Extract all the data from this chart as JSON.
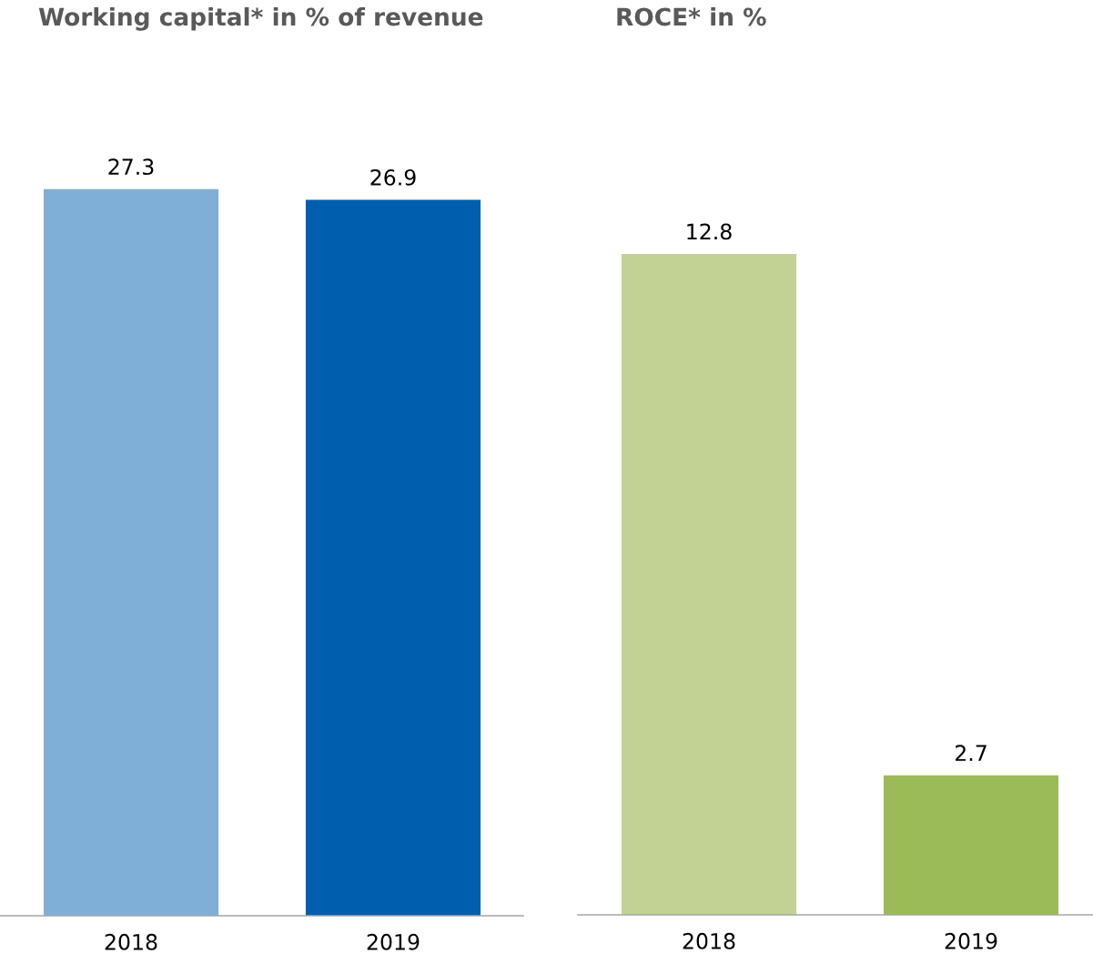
{
  "chart_data": [
    {
      "type": "bar",
      "title": "Working capital* in % of revenue",
      "categories": [
        "2018",
        "2019"
      ],
      "values": [
        27.3,
        26.9
      ],
      "colors": [
        "#7fafd6",
        "#005eae"
      ],
      "data_labels": true
    },
    {
      "type": "bar",
      "title": "ROCE* in %",
      "categories": [
        "2018",
        "2019"
      ],
      "values": [
        12.8,
        2.7
      ],
      "colors": [
        "#c1d294",
        "#9bbb59"
      ],
      "data_labels": true
    }
  ]
}
